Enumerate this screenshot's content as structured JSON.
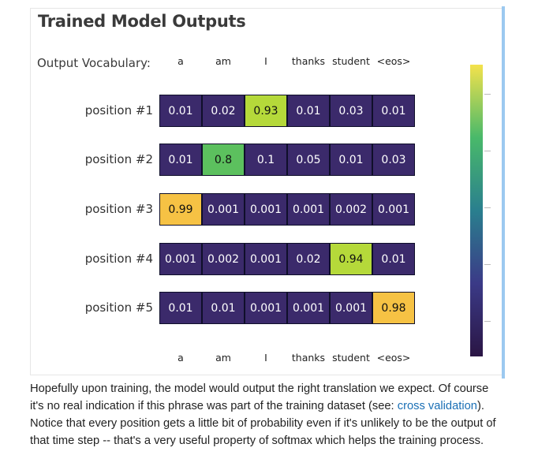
{
  "figure": {
    "title": "Trained Model Outputs",
    "vocab_label": "Output Vocabulary:",
    "vocab_top": [
      "a",
      "am",
      "I",
      "thanks",
      "student",
      "<eos>"
    ],
    "vocab_bottom": [
      "a",
      "am",
      "I",
      "thanks",
      "student",
      "<eos>"
    ],
    "rows": [
      {
        "label": "position #1",
        "values": [
          "0.01",
          "0.02",
          "0.93",
          "0.01",
          "0.03",
          "0.01"
        ]
      },
      {
        "label": "position #2",
        "values": [
          "0.01",
          "0.8",
          "0.1",
          "0.05",
          "0.01",
          "0.03"
        ]
      },
      {
        "label": "position #3",
        "values": [
          "0.99",
          "0.001",
          "0.001",
          "0.001",
          "0.002",
          "0.001"
        ]
      },
      {
        "label": "position #4",
        "values": [
          "0.001",
          "0.002",
          "0.001",
          "0.02",
          "0.94",
          "0.01"
        ]
      },
      {
        "label": "position #5",
        "values": [
          "0.01",
          "0.01",
          "0.001",
          "0.001",
          "0.001",
          "0.98"
        ]
      }
    ],
    "colors": {
      "low": "#3b2a6b",
      "mid_green": "#5cc05e",
      "high_green": "#b5d93a",
      "high_yellow": "#d8dc3c",
      "max": "#f6c244"
    }
  },
  "caption": {
    "text_before": "Hopefully upon training, the model would output the right translation we expect. Of course it's no real indication if this phrase was part of the training dataset (see: ",
    "link": "cross validation",
    "text_after": "). Notice that every position gets a little bit of probability even if it's unlikely to be the output of that time step -- that's a very useful property of softmax which helps the training process."
  }
}
